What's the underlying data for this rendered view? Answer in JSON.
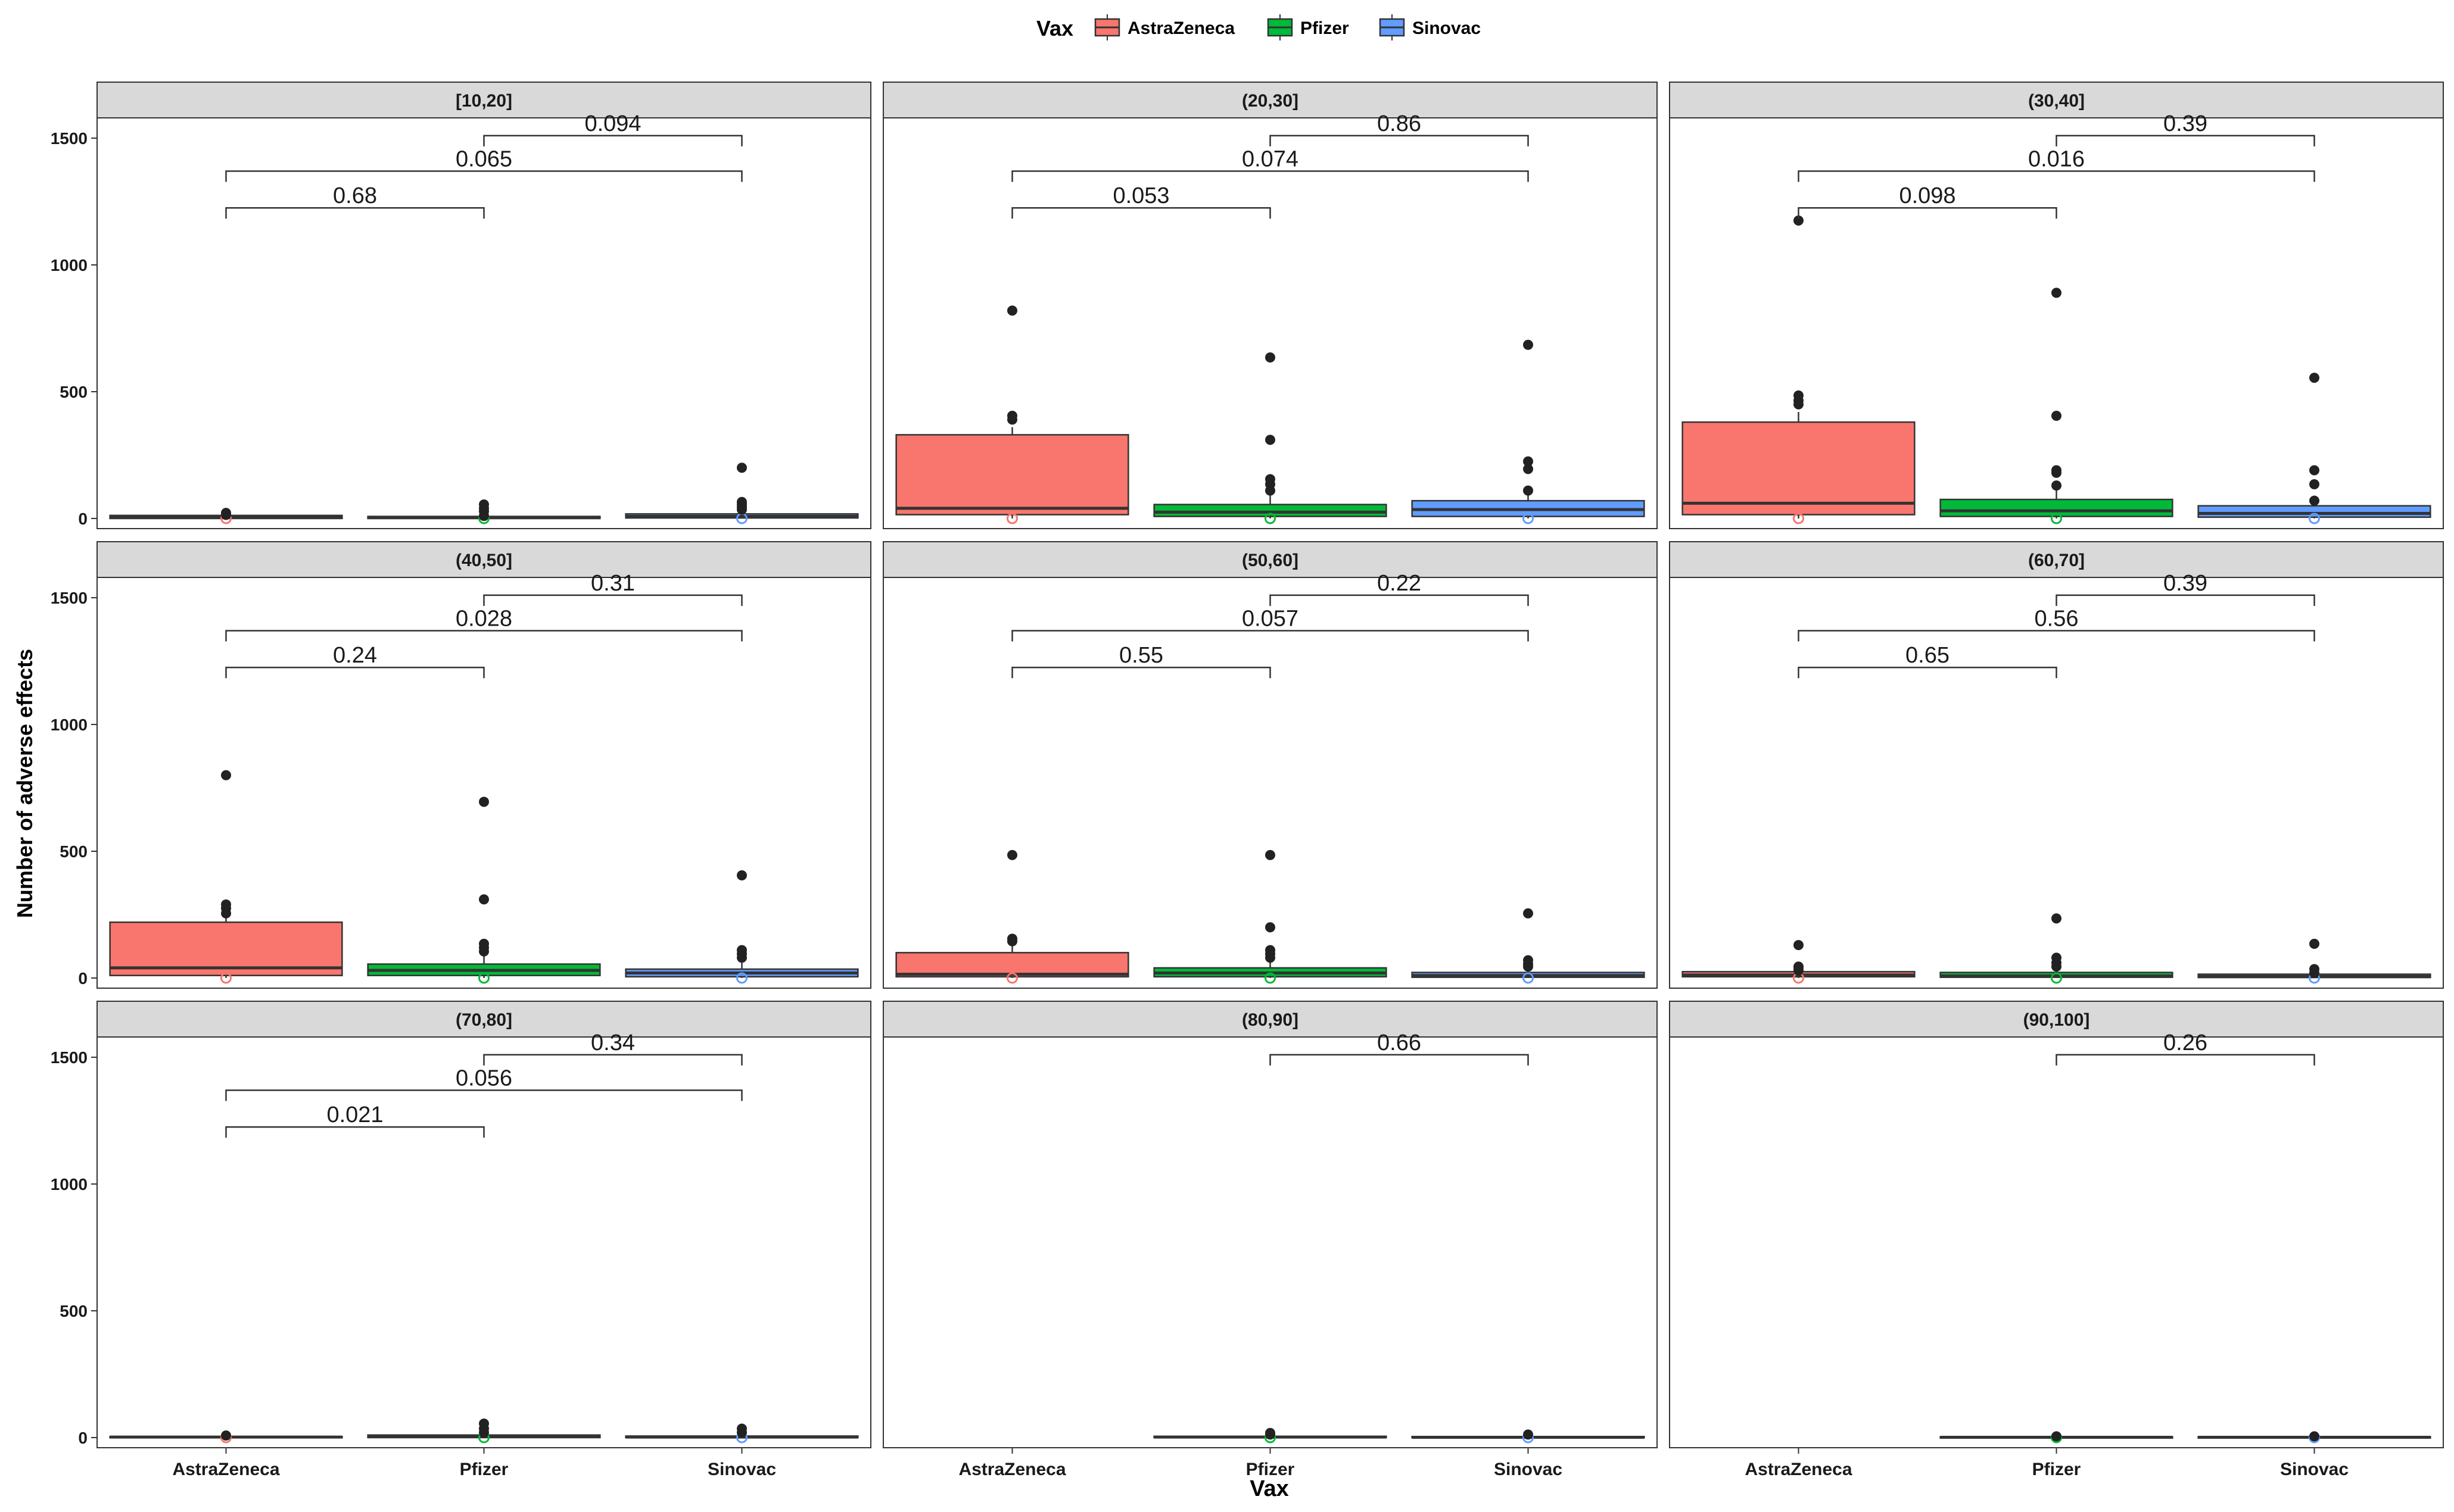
{
  "chart_data": {
    "type": "box",
    "legend": {
      "title": "Vax",
      "position": "top",
      "entries": [
        {
          "label": "AstraZeneca",
          "color": "#F8766D"
        },
        {
          "label": "Pfizer",
          "color": "#00BA38"
        },
        {
          "label": "Sinovac",
          "color": "#619CFF"
        }
      ]
    },
    "xlabel": "Vax",
    "ylabel": "Number of adverse effects",
    "ylim": [
      -40,
      1580
    ],
    "yticks": [
      0,
      500,
      1000,
      1500
    ],
    "ytick_labels": [
      "0",
      "500",
      "1000",
      "1500"
    ],
    "categories": [
      "AstraZeneca",
      "Pfizer",
      "Sinovac"
    ],
    "facets": [
      {
        "label": "[10,20]",
        "boxes": [
          {
            "cat": "AstraZeneca",
            "q1": 0,
            "median": 5,
            "q3": 12,
            "wlo": 0,
            "whi": 20,
            "outliers": [
              22,
              14
            ]
          },
          {
            "cat": "Pfizer",
            "q1": 0,
            "median": 3,
            "q3": 8,
            "wlo": 0,
            "whi": 14,
            "outliers": [
              55,
              40,
              28,
              10
            ]
          },
          {
            "cat": "Sinovac",
            "q1": 2,
            "median": 8,
            "q3": 18,
            "wlo": 0,
            "whi": 30,
            "outliers": [
              200,
              65,
              55,
              45,
              35
            ]
          }
        ],
        "brackets": [
          {
            "from": "AstraZeneca",
            "to": "Pfizer",
            "y": 1225,
            "label": "0.68"
          },
          {
            "from": "AstraZeneca",
            "to": "Sinovac",
            "y": 1370,
            "label": "0.065"
          },
          {
            "from": "Pfizer",
            "to": "Sinovac",
            "y": 1510,
            "label": "0.094"
          }
        ]
      },
      {
        "label": "(20,30]",
        "boxes": [
          {
            "cat": "AstraZeneca",
            "q1": 15,
            "median": 40,
            "q3": 330,
            "wlo": 0,
            "whi": 360,
            "outliers": [
              820,
              405,
              390
            ]
          },
          {
            "cat": "Pfizer",
            "q1": 8,
            "median": 25,
            "q3": 55,
            "wlo": 0,
            "whi": 100,
            "outliers": [
              635,
              310,
              155,
              135,
              110
            ]
          },
          {
            "cat": "Sinovac",
            "q1": 8,
            "median": 35,
            "q3": 70,
            "wlo": 0,
            "whi": 120,
            "outliers": [
              685,
              225,
              195,
              110
            ]
          }
        ],
        "brackets": [
          {
            "from": "AstraZeneca",
            "to": "Pfizer",
            "y": 1225,
            "label": "0.053"
          },
          {
            "from": "AstraZeneca",
            "to": "Sinovac",
            "y": 1370,
            "label": "0.074"
          },
          {
            "from": "Pfizer",
            "to": "Sinovac",
            "y": 1510,
            "label": "0.86"
          }
        ]
      },
      {
        "label": "(30,40]",
        "boxes": [
          {
            "cat": "AstraZeneca",
            "q1": 15,
            "median": 60,
            "q3": 380,
            "wlo": 0,
            "whi": 420,
            "outliers": [
              1175,
              485,
              465,
              450
            ]
          },
          {
            "cat": "Pfizer",
            "q1": 8,
            "median": 30,
            "q3": 75,
            "wlo": 0,
            "whi": 120,
            "outliers": [
              890,
              405,
              190,
              180,
              130
            ]
          },
          {
            "cat": "Sinovac",
            "q1": 5,
            "median": 20,
            "q3": 50,
            "wlo": 0,
            "whi": 90,
            "outliers": [
              555,
              190,
              135,
              70
            ]
          }
        ],
        "brackets": [
          {
            "from": "AstraZeneca",
            "to": "Pfizer",
            "y": 1225,
            "label": "0.098"
          },
          {
            "from": "AstraZeneca",
            "to": "Sinovac",
            "y": 1370,
            "label": "0.016"
          },
          {
            "from": "Pfizer",
            "to": "Sinovac",
            "y": 1510,
            "label": "0.39"
          }
        ]
      },
      {
        "label": "(40,50]",
        "boxes": [
          {
            "cat": "AstraZeneca",
            "q1": 10,
            "median": 40,
            "q3": 220,
            "wlo": 0,
            "whi": 250,
            "outliers": [
              800,
              290,
              275,
              255
            ]
          },
          {
            "cat": "Pfizer",
            "q1": 10,
            "median": 30,
            "q3": 55,
            "wlo": 0,
            "whi": 100,
            "outliers": [
              695,
              310,
              135,
              120,
              105
            ]
          },
          {
            "cat": "Sinovac",
            "q1": 5,
            "median": 20,
            "q3": 35,
            "wlo": 0,
            "whi": 60,
            "outliers": [
              405,
              110,
              95,
              80
            ]
          }
        ],
        "brackets": [
          {
            "from": "AstraZeneca",
            "to": "Pfizer",
            "y": 1225,
            "label": "0.24"
          },
          {
            "from": "AstraZeneca",
            "to": "Sinovac",
            "y": 1370,
            "label": "0.028"
          },
          {
            "from": "Pfizer",
            "to": "Sinovac",
            "y": 1510,
            "label": "0.31"
          }
        ]
      },
      {
        "label": "(50,60]",
        "boxes": [
          {
            "cat": "AstraZeneca",
            "q1": 5,
            "median": 15,
            "q3": 100,
            "wlo": 0,
            "whi": 130,
            "outliers": [
              485,
              155,
              145
            ]
          },
          {
            "cat": "Pfizer",
            "q1": 5,
            "median": 20,
            "q3": 40,
            "wlo": 0,
            "whi": 70,
            "outliers": [
              485,
              200,
              110,
              95,
              80
            ]
          },
          {
            "cat": "Sinovac",
            "q1": 3,
            "median": 10,
            "q3": 22,
            "wlo": 0,
            "whi": 40,
            "outliers": [
              255,
              70,
              55,
              45
            ]
          }
        ],
        "brackets": [
          {
            "from": "AstraZeneca",
            "to": "Pfizer",
            "y": 1225,
            "label": "0.55"
          },
          {
            "from": "AstraZeneca",
            "to": "Sinovac",
            "y": 1370,
            "label": "0.057"
          },
          {
            "from": "Pfizer",
            "to": "Sinovac",
            "y": 1510,
            "label": "0.22"
          }
        ]
      },
      {
        "label": "(60,70]",
        "boxes": [
          {
            "cat": "AstraZeneca",
            "q1": 5,
            "median": 12,
            "q3": 25,
            "wlo": 0,
            "whi": 40,
            "outliers": [
              130,
              45,
              40,
              30
            ]
          },
          {
            "cat": "Pfizer",
            "q1": 3,
            "median": 8,
            "q3": 22,
            "wlo": 0,
            "whi": 35,
            "outliers": [
              235,
              80,
              60,
              45
            ]
          },
          {
            "cat": "Sinovac",
            "q1": 2,
            "median": 6,
            "q3": 15,
            "wlo": 0,
            "whi": 25,
            "outliers": [
              135,
              35,
              20
            ]
          }
        ],
        "brackets": [
          {
            "from": "AstraZeneca",
            "to": "Pfizer",
            "y": 1225,
            "label": "0.65"
          },
          {
            "from": "AstraZeneca",
            "to": "Sinovac",
            "y": 1370,
            "label": "0.56"
          },
          {
            "from": "Pfizer",
            "to": "Sinovac",
            "y": 1510,
            "label": "0.39"
          }
        ]
      },
      {
        "label": "(70,80]",
        "boxes": [
          {
            "cat": "AstraZeneca",
            "q1": 0,
            "median": 2,
            "q3": 4,
            "wlo": 0,
            "whi": 6,
            "outliers": [
              8
            ]
          },
          {
            "cat": "Pfizer",
            "q1": 0,
            "median": 4,
            "q3": 10,
            "wlo": 0,
            "whi": 18,
            "outliers": [
              55,
              35,
              20
            ]
          },
          {
            "cat": "Sinovac",
            "q1": 0,
            "median": 2,
            "q3": 6,
            "wlo": 0,
            "whi": 10,
            "outliers": [
              35,
              20
            ]
          }
        ],
        "brackets": [
          {
            "from": "AstraZeneca",
            "to": "Pfizer",
            "y": 1225,
            "label": "0.021"
          },
          {
            "from": "AstraZeneca",
            "to": "Sinovac",
            "y": 1370,
            "label": "0.056"
          },
          {
            "from": "Pfizer",
            "to": "Sinovac",
            "y": 1510,
            "label": "0.34"
          }
        ]
      },
      {
        "label": "(80,90]",
        "boxes": [
          {
            "cat": "Pfizer",
            "q1": 0,
            "median": 2,
            "q3": 5,
            "wlo": 0,
            "whi": 8,
            "outliers": [
              18,
              12
            ]
          },
          {
            "cat": "Sinovac",
            "q1": 0,
            "median": 1,
            "q3": 4,
            "wlo": 0,
            "whi": 6,
            "outliers": [
              12
            ]
          }
        ],
        "brackets": [
          {
            "from": "Pfizer",
            "to": "Sinovac",
            "y": 1510,
            "label": "0.66"
          }
        ]
      },
      {
        "label": "(90,100]",
        "boxes": [
          {
            "cat": "Pfizer",
            "q1": 0,
            "median": 1,
            "q3": 3,
            "wlo": 0,
            "whi": 4,
            "outliers": [
              5
            ]
          },
          {
            "cat": "Sinovac",
            "q1": 0,
            "median": 1,
            "q3": 3,
            "wlo": 0,
            "whi": 4,
            "outliers": [
              5
            ]
          }
        ],
        "brackets": [
          {
            "from": "Pfizer",
            "to": "Sinovac",
            "y": 1510,
            "label": "0.26"
          }
        ]
      }
    ]
  }
}
